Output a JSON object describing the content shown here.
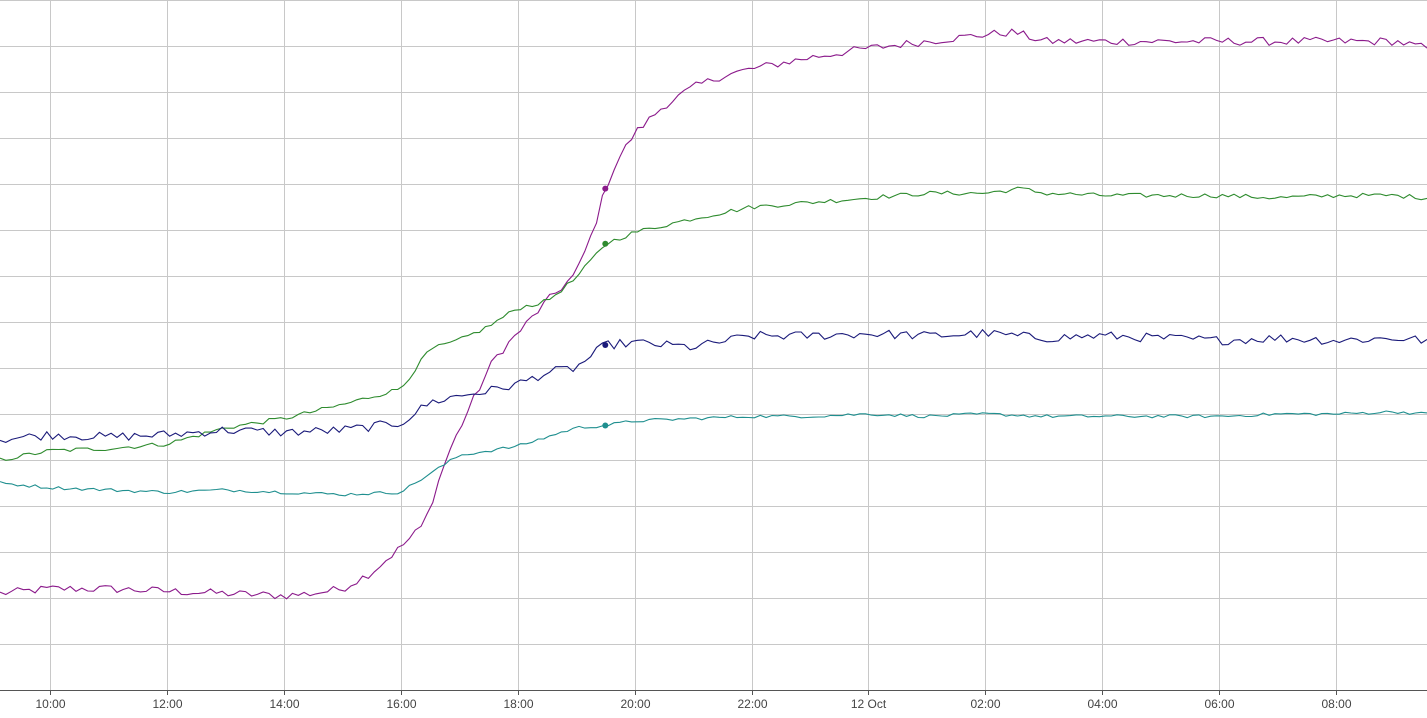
{
  "chart_data": {
    "type": "line",
    "title": "",
    "xlabel": "",
    "ylabel": "",
    "grid": true,
    "legend": "none",
    "x_ticks": [
      {
        "t": 0,
        "label": "10:00"
      },
      {
        "t": 2,
        "label": "12:00"
      },
      {
        "t": 4,
        "label": "14:00"
      },
      {
        "t": 6,
        "label": "16:00"
      },
      {
        "t": 8,
        "label": "18:00"
      },
      {
        "t": 10,
        "label": "20:00"
      },
      {
        "t": 12,
        "label": "22:00"
      },
      {
        "t": 14,
        "label": "12 Oct"
      },
      {
        "t": 16,
        "label": "02:00"
      },
      {
        "t": 18,
        "label": "04:00"
      },
      {
        "t": 20,
        "label": "06:00"
      },
      {
        "t": 22,
        "label": "08:00"
      }
    ],
    "xlim": [
      -0.85,
      23.55
    ],
    "ylim": [
      0,
      15
    ],
    "y_gridlines": [
      0,
      1,
      2,
      3,
      4,
      5,
      6,
      7,
      8,
      9,
      10,
      11,
      12,
      13,
      14,
      15
    ],
    "cursor_t": 9.5,
    "series": [
      {
        "color": "#8b1a8b",
        "points": [
          [
            -0.85,
            2.1
          ],
          [
            0,
            2.2
          ],
          [
            1,
            2.2
          ],
          [
            2,
            2.15
          ],
          [
            3,
            2.1
          ],
          [
            4,
            2.05
          ],
          [
            4.5,
            2.1
          ],
          [
            5,
            2.2
          ],
          [
            5.5,
            2.55
          ],
          [
            6,
            3.1
          ],
          [
            6.4,
            3.6
          ],
          [
            6.8,
            5.1
          ],
          [
            7.2,
            6.2
          ],
          [
            7.6,
            7.2
          ],
          [
            8,
            7.75
          ],
          [
            8.5,
            8.45
          ],
          [
            9,
            9.05
          ],
          [
            9.3,
            10.0
          ],
          [
            9.5,
            10.9
          ],
          [
            9.7,
            11.5
          ],
          [
            10,
            12.1
          ],
          [
            10.5,
            12.7
          ],
          [
            11,
            13.1
          ],
          [
            11.5,
            13.35
          ],
          [
            12,
            13.5
          ],
          [
            13,
            13.75
          ],
          [
            14,
            13.95
          ],
          [
            15,
            14.1
          ],
          [
            16,
            14.25
          ],
          [
            16.5,
            14.3
          ],
          [
            17,
            14.1
          ],
          [
            18,
            14.1
          ],
          [
            19,
            14.1
          ],
          [
            20,
            14.1
          ],
          [
            21,
            14.1
          ],
          [
            22,
            14.1
          ],
          [
            23,
            14.1
          ],
          [
            23.55,
            13.95
          ]
        ]
      },
      {
        "color": "#2e8b2e",
        "points": [
          [
            -0.85,
            5.0
          ],
          [
            0,
            5.2
          ],
          [
            1,
            5.25
          ],
          [
            2,
            5.35
          ],
          [
            3,
            5.7
          ],
          [
            4,
            5.9
          ],
          [
            5,
            6.2
          ],
          [
            6,
            6.55
          ],
          [
            6.5,
            7.4
          ],
          [
            7,
            7.6
          ],
          [
            7.5,
            7.9
          ],
          [
            8,
            8.3
          ],
          [
            8.5,
            8.45
          ],
          [
            9,
            8.95
          ],
          [
            9.5,
            9.7
          ],
          [
            10,
            9.95
          ],
          [
            11,
            10.25
          ],
          [
            12,
            10.5
          ],
          [
            13,
            10.6
          ],
          [
            14,
            10.7
          ],
          [
            15,
            10.8
          ],
          [
            16,
            10.8
          ],
          [
            16.6,
            10.9
          ],
          [
            17,
            10.8
          ],
          [
            18,
            10.75
          ],
          [
            19,
            10.75
          ],
          [
            20,
            10.75
          ],
          [
            21,
            10.7
          ],
          [
            22,
            10.75
          ],
          [
            23,
            10.75
          ],
          [
            23.55,
            10.7
          ]
        ]
      },
      {
        "color": "#1a1a7a",
        "points": [
          [
            -0.85,
            5.45
          ],
          [
            0,
            5.55
          ],
          [
            1,
            5.5
          ],
          [
            2,
            5.55
          ],
          [
            3,
            5.65
          ],
          [
            4,
            5.6
          ],
          [
            5,
            5.65
          ],
          [
            6,
            5.8
          ],
          [
            6.5,
            6.25
          ],
          [
            7,
            6.4
          ],
          [
            7.5,
            6.5
          ],
          [
            8,
            6.65
          ],
          [
            8.5,
            6.9
          ],
          [
            9,
            7.0
          ],
          [
            9.5,
            7.5
          ],
          [
            10,
            7.55
          ],
          [
            11,
            7.45
          ],
          [
            12,
            7.7
          ],
          [
            13,
            7.7
          ],
          [
            14,
            7.75
          ],
          [
            15,
            7.7
          ],
          [
            16,
            7.75
          ],
          [
            17,
            7.65
          ],
          [
            18,
            7.7
          ],
          [
            19,
            7.65
          ],
          [
            20,
            7.6
          ],
          [
            21,
            7.65
          ],
          [
            22,
            7.6
          ],
          [
            23,
            7.65
          ],
          [
            23.55,
            7.6
          ]
        ]
      },
      {
        "color": "#1f8f8f",
        "points": [
          [
            -0.85,
            4.5
          ],
          [
            0,
            4.4
          ],
          [
            1,
            4.35
          ],
          [
            2,
            4.3
          ],
          [
            3,
            4.35
          ],
          [
            4,
            4.3
          ],
          [
            5,
            4.25
          ],
          [
            6,
            4.3
          ],
          [
            6.5,
            4.7
          ],
          [
            7,
            5.1
          ],
          [
            7.5,
            5.2
          ],
          [
            8,
            5.3
          ],
          [
            8.5,
            5.5
          ],
          [
            9,
            5.7
          ],
          [
            9.5,
            5.75
          ],
          [
            10,
            5.85
          ],
          [
            11,
            5.9
          ],
          [
            12,
            5.95
          ],
          [
            13,
            5.95
          ],
          [
            14,
            6.0
          ],
          [
            15,
            5.95
          ],
          [
            16,
            6.0
          ],
          [
            17,
            5.95
          ],
          [
            18,
            5.95
          ],
          [
            19,
            5.95
          ],
          [
            20,
            5.95
          ],
          [
            21,
            6.0
          ],
          [
            22,
            6.0
          ],
          [
            23,
            6.05
          ],
          [
            23.55,
            6.0
          ]
        ]
      }
    ]
  }
}
